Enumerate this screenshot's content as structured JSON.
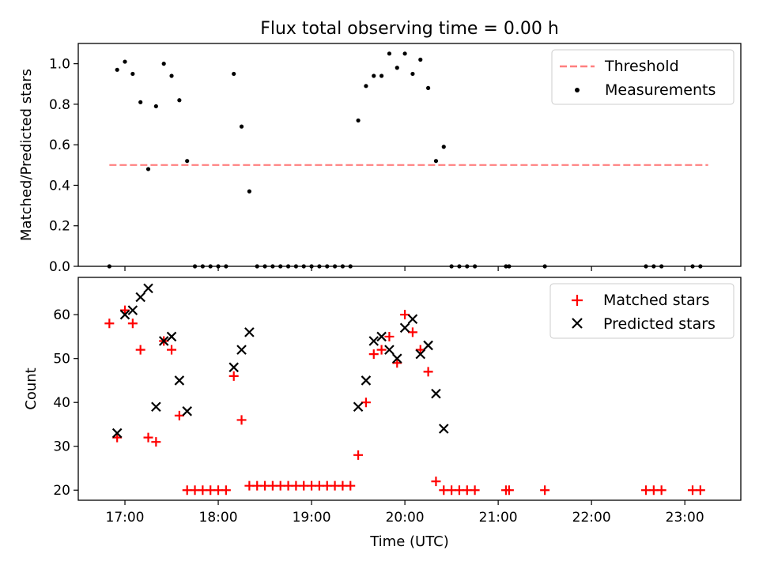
{
  "title": "Flux total observing time = 0.00 h",
  "xlabel": "Time (UTC)",
  "x_ticks": [
    "17:00",
    "18:00",
    "19:00",
    "20:00",
    "21:00",
    "22:00",
    "23:00"
  ],
  "colors": {
    "threshold": "#ff7f7f",
    "measurement": "#000000",
    "matched": "#ff0000",
    "predicted": "#000000"
  },
  "chart_data": [
    {
      "type": "scatter",
      "panel": "top",
      "xlabel": "Time (UTC)",
      "ylabel": "Matched/Predicted stars",
      "xlim": [
        "16:30",
        "23:36"
      ],
      "ylim": [
        0,
        1.1
      ],
      "y_ticks": [
        "0.0",
        "0.2",
        "0.4",
        "0.6",
        "0.8",
        "1.0"
      ],
      "legend_position": "top-right",
      "threshold": {
        "name": "Threshold",
        "y": 0.5,
        "x_range": [
          "16:50",
          "23:15"
        ]
      },
      "series": [
        {
          "name": "Measurements",
          "x": [
            "16:50",
            "16:55",
            "17:00",
            "17:05",
            "17:10",
            "17:15",
            "17:20",
            "17:25",
            "17:30",
            "17:35",
            "17:40",
            "17:45",
            "17:50",
            "17:55",
            "18:00",
            "18:05",
            "18:10",
            "18:15",
            "18:20",
            "18:25",
            "18:30",
            "18:35",
            "18:40",
            "18:45",
            "18:50",
            "18:55",
            "19:00",
            "19:05",
            "19:10",
            "19:15",
            "19:20",
            "19:25",
            "19:30",
            "19:35",
            "19:40",
            "19:45",
            "19:50",
            "19:55",
            "20:00",
            "20:05",
            "20:10",
            "20:15",
            "20:20",
            "20:25",
            "20:30",
            "20:35",
            "20:40",
            "20:45",
            "21:05",
            "21:07",
            "21:30",
            "22:35",
            "22:40",
            "22:45",
            "23:05",
            "23:10"
          ],
          "y": [
            0.0,
            0.97,
            1.01,
            0.95,
            0.81,
            0.48,
            0.79,
            1.0,
            0.94,
            0.82,
            0.52,
            0.0,
            0.0,
            0.0,
            0.0,
            0.0,
            0.95,
            0.69,
            0.37,
            0.0,
            0.0,
            0.0,
            0.0,
            0.0,
            0.0,
            0.0,
            0.0,
            0.0,
            0.0,
            0.0,
            0.0,
            0.0,
            0.72,
            0.89,
            0.94,
            0.94,
            1.05,
            0.98,
            1.05,
            0.95,
            1.02,
            0.88,
            0.52,
            0.59,
            0.0,
            0.0,
            0.0,
            0.0,
            0.0,
            0.0,
            0.0,
            0.0,
            0.0,
            0.0,
            0.0,
            0.0
          ]
        }
      ]
    },
    {
      "type": "scatter",
      "panel": "bottom",
      "xlabel": "Time (UTC)",
      "ylabel": "Count",
      "xlim": [
        "16:30",
        "23:36"
      ],
      "ylim": [
        17.7,
        68.5
      ],
      "y_ticks": [
        "20",
        "30",
        "40",
        "50",
        "60"
      ],
      "legend_position": "top-right",
      "series": [
        {
          "name": "Matched stars",
          "marker": "plus",
          "x": [
            "16:50",
            "16:55",
            "17:00",
            "17:05",
            "17:10",
            "17:15",
            "17:20",
            "17:25",
            "17:30",
            "17:35",
            "17:40",
            "17:45",
            "17:50",
            "17:55",
            "18:00",
            "18:05",
            "18:10",
            "18:15",
            "18:20",
            "18:25",
            "18:30",
            "18:35",
            "18:40",
            "18:45",
            "18:50",
            "18:55",
            "19:00",
            "19:05",
            "19:10",
            "19:15",
            "19:20",
            "19:25",
            "19:30",
            "19:35",
            "19:40",
            "19:45",
            "19:50",
            "19:55",
            "20:00",
            "20:05",
            "20:10",
            "20:15",
            "20:20",
            "20:25",
            "20:30",
            "20:35",
            "20:40",
            "20:45",
            "21:05",
            "21:07",
            "21:30",
            "22:35",
            "22:40",
            "22:45",
            "23:05",
            "23:10"
          ],
          "y": [
            58,
            32,
            61,
            58,
            52,
            32,
            31,
            54,
            52,
            37,
            20,
            20,
            20,
            20,
            20,
            20,
            46,
            36,
            21,
            21,
            21,
            21,
            21,
            21,
            21,
            21,
            21,
            21,
            21,
            21,
            21,
            21,
            28,
            40,
            51,
            52,
            55,
            49,
            60,
            56,
            52,
            47,
            22,
            20,
            20,
            20,
            20,
            20,
            20,
            20,
            20,
            20,
            20,
            20,
            20,
            20
          ]
        },
        {
          "name": "Predicted stars",
          "marker": "x",
          "x": [
            "16:55",
            "17:00",
            "17:05",
            "17:10",
            "17:15",
            "17:20",
            "17:25",
            "17:30",
            "17:35",
            "17:40",
            "18:10",
            "18:15",
            "18:20",
            "19:30",
            "19:35",
            "19:40",
            "19:45",
            "19:50",
            "19:55",
            "20:00",
            "20:05",
            "20:10",
            "20:15",
            "20:20",
            "20:25"
          ],
          "y": [
            33,
            60,
            61,
            64,
            66,
            39,
            54,
            55,
            45,
            38,
            48,
            52,
            56,
            39,
            45,
            54,
            55,
            52,
            50,
            57,
            59,
            51,
            53,
            42,
            34
          ]
        }
      ]
    }
  ]
}
